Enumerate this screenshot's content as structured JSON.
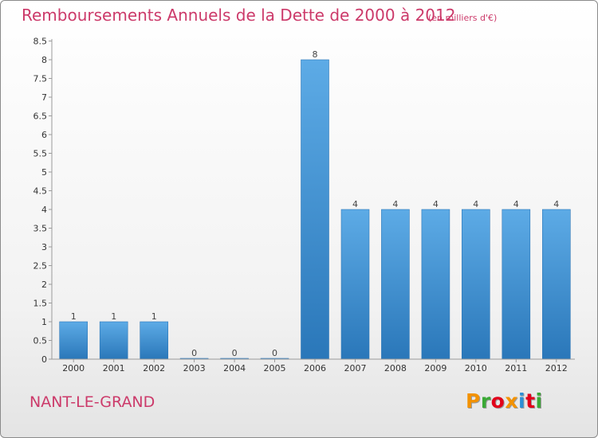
{
  "chart_data": {
    "type": "bar",
    "title": "Remboursements Annuels de la Dette de 2000 à 2012",
    "unit": "(en milliers d'€)",
    "categories": [
      "2000",
      "2001",
      "2002",
      "2003",
      "2004",
      "2005",
      "2006",
      "2007",
      "2008",
      "2009",
      "2010",
      "2011",
      "2012"
    ],
    "values": [
      1,
      1,
      1,
      0,
      0,
      0,
      8,
      4,
      4,
      4,
      4,
      4,
      4
    ],
    "data_labels": [
      "1",
      "1",
      "1",
      "0",
      "0",
      "0",
      "8",
      "4",
      "4",
      "4",
      "4",
      "4",
      "4"
    ],
    "ylim": [
      0,
      8.5
    ],
    "yticks": [
      "0",
      "0.5",
      "1",
      "1.5",
      "2",
      "2.5",
      "3",
      "3.5",
      "4",
      "4.5",
      "5",
      "5.5",
      "6",
      "6.5",
      "7",
      "7.5",
      "8",
      "8.5"
    ],
    "grid": false,
    "legend": "none",
    "bar_color": "#3d8fd6"
  },
  "commune": "NANT-LE-GRAND",
  "logo": {
    "letters": [
      "P",
      "r",
      "o",
      "x",
      "i",
      "t",
      "i"
    ],
    "colors": [
      "#f39200",
      "#3aa935",
      "#e2001a",
      "#f39200",
      "#2c8fd6",
      "#e2001a",
      "#3aa935"
    ]
  }
}
